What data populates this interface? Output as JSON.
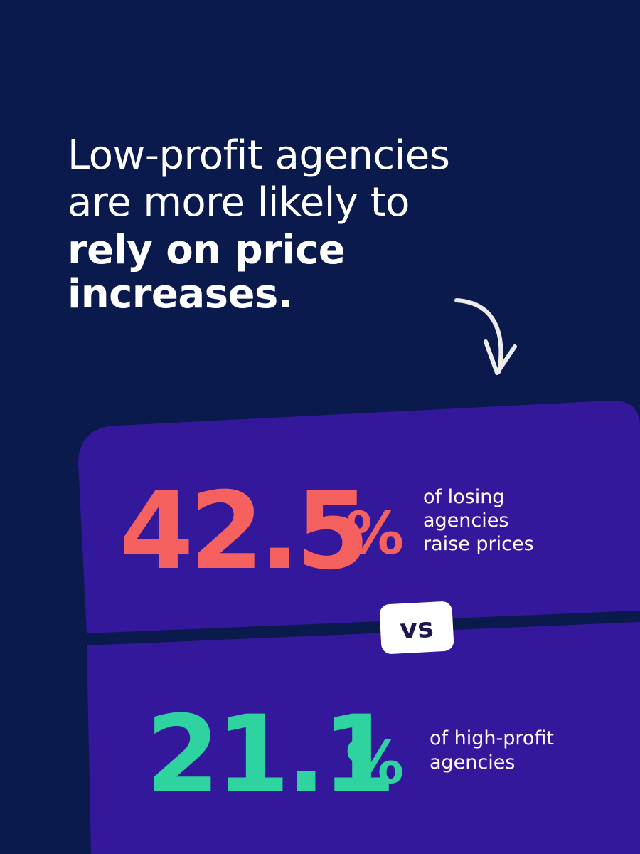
{
  "headline": {
    "regular_lines": [
      "Low-profit agencies",
      "are more likely to"
    ],
    "bold_lines": [
      "rely on price",
      "increases."
    ]
  },
  "stats": [
    {
      "value": "42.5",
      "unit": "%",
      "caption_lines": [
        "of losing",
        "agencies",
        "raise prices"
      ]
    },
    {
      "value": "21.1",
      "unit": "%",
      "caption_lines": [
        "of high-profit",
        "agencies"
      ]
    }
  ],
  "separator": "vs"
}
